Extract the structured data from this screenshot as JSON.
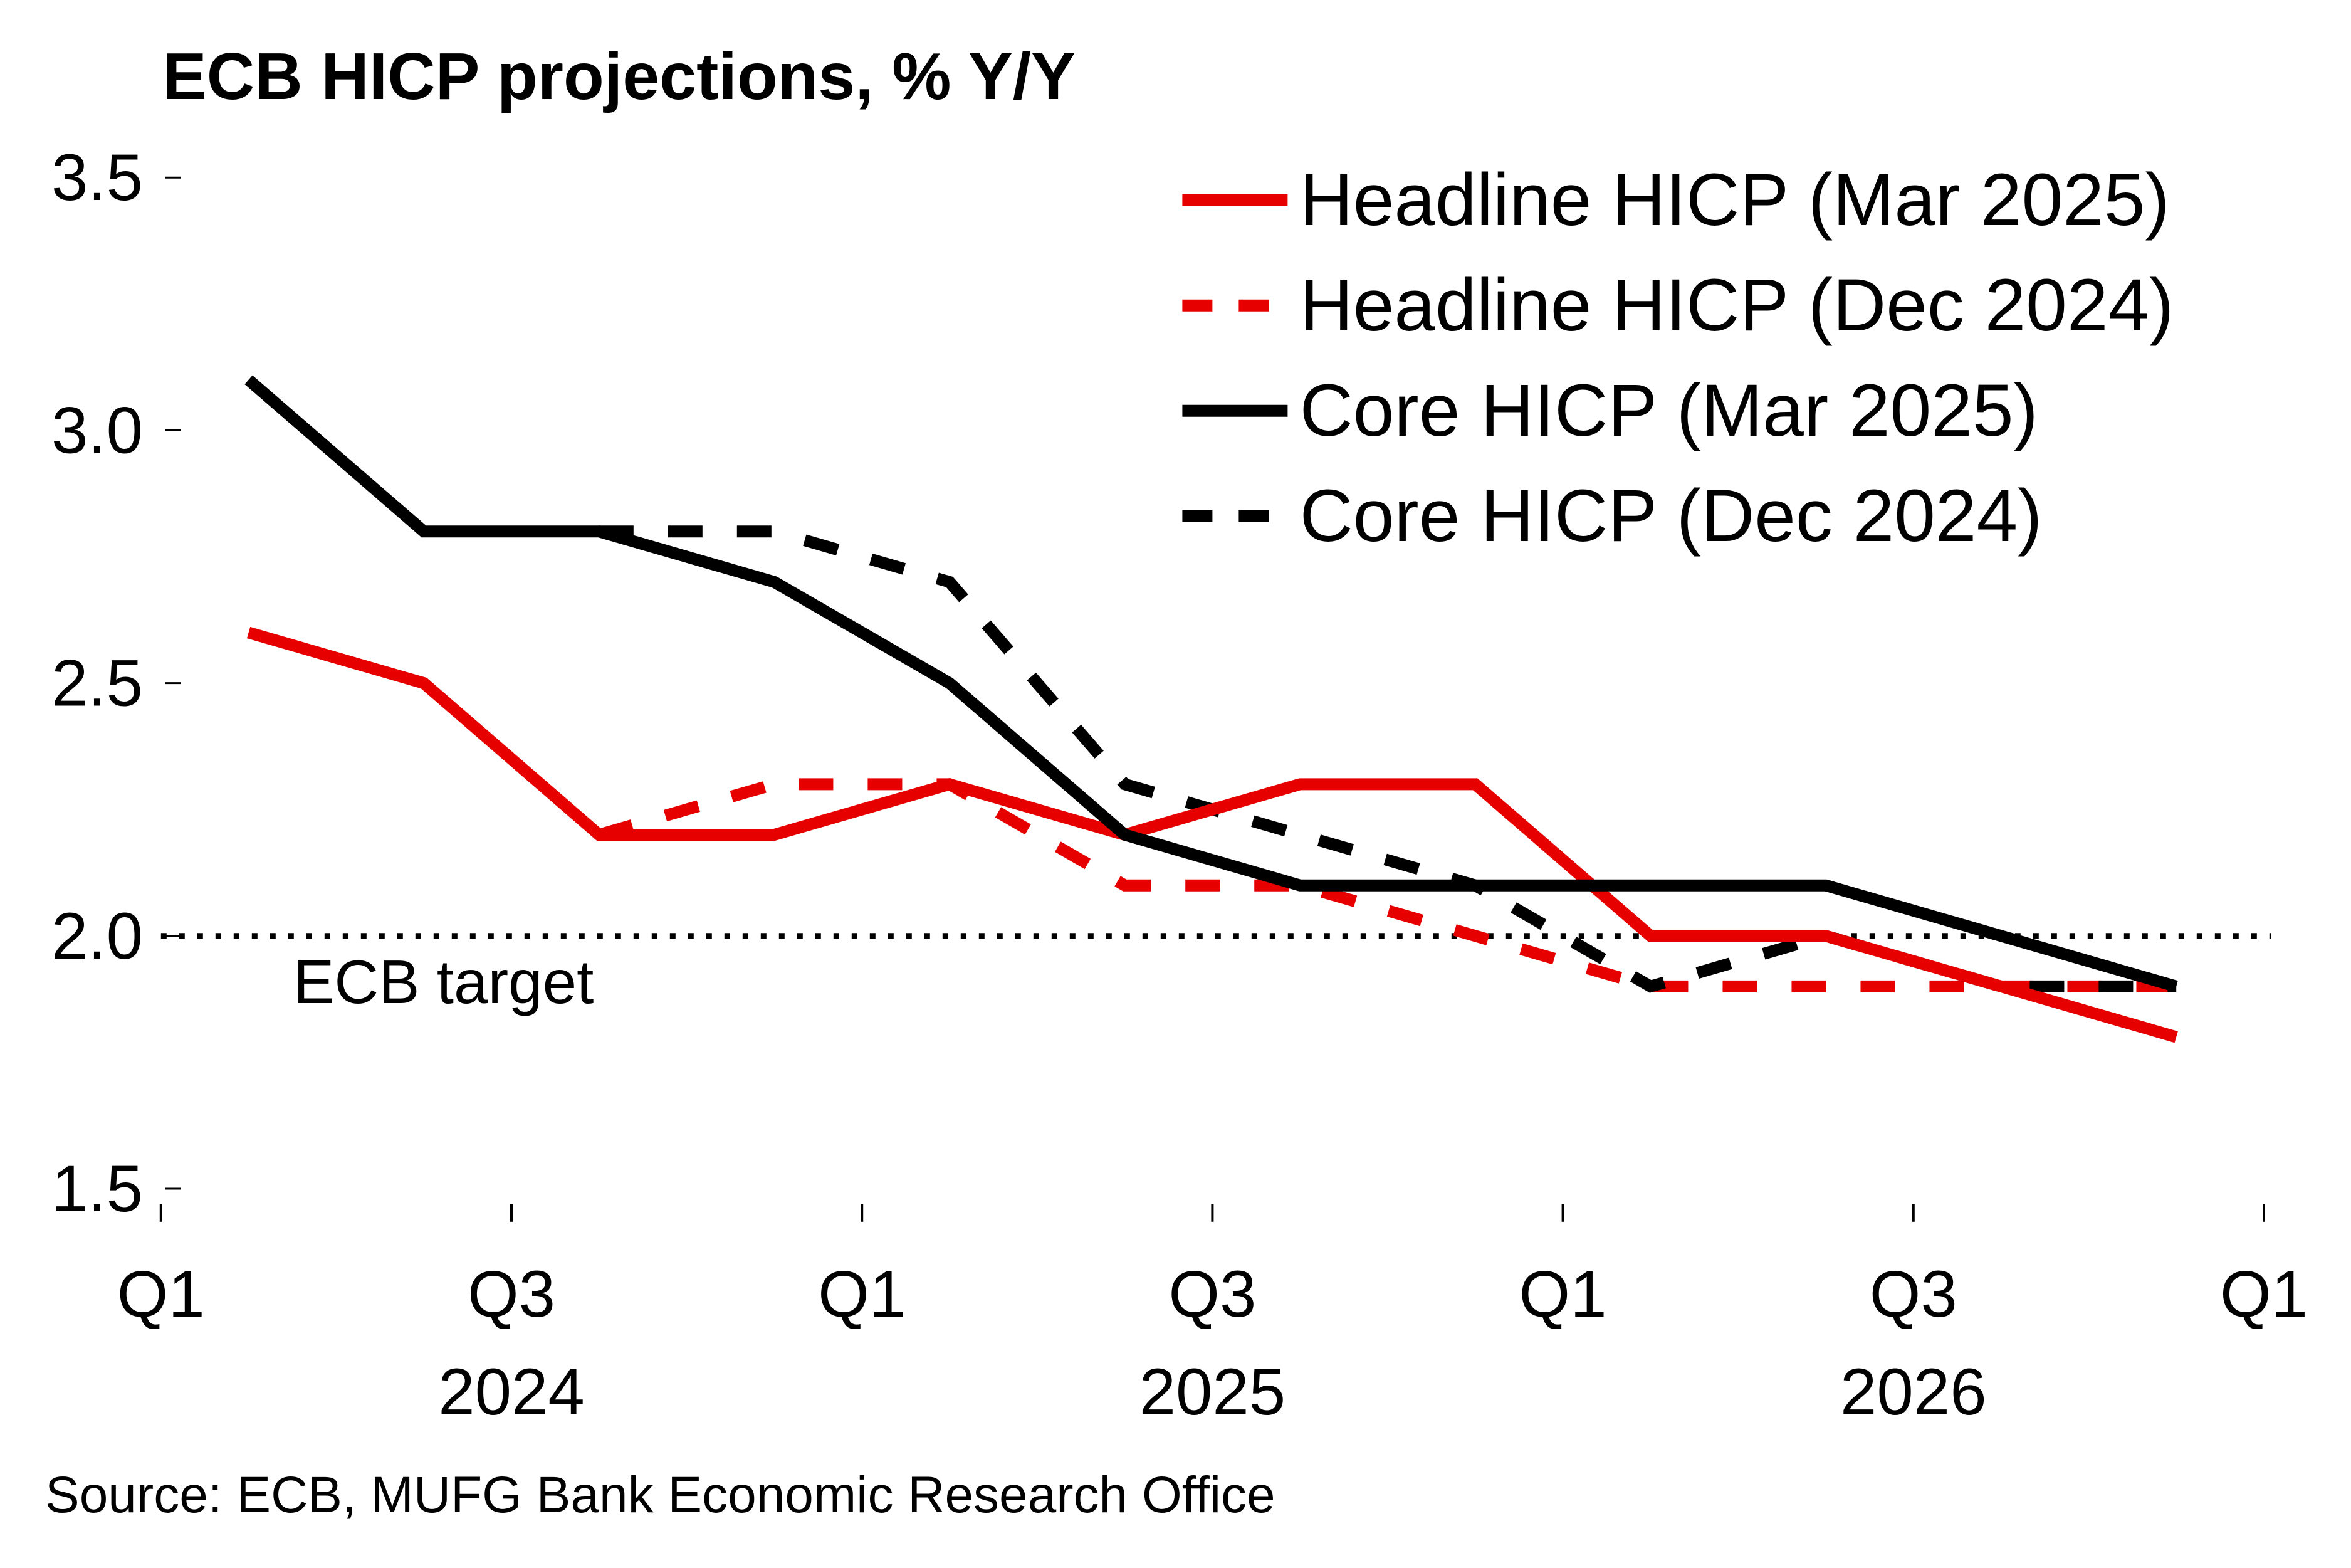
{
  "chart_data": {
    "type": "line",
    "title": "ECB HICP projections, % Y/Y",
    "xlabel": "",
    "ylabel": "",
    "ylim": [
      1.5,
      3.5
    ],
    "yticks": [
      "3.5",
      "3.0",
      "2.5",
      "2.0",
      "1.5"
    ],
    "ytick_values": [
      3.5,
      3.0,
      2.5,
      2.0,
      1.5
    ],
    "x": [
      "2024 Q1",
      "2024 Q2",
      "2024 Q3",
      "2024 Q4",
      "2025 Q1",
      "2025 Q2",
      "2025 Q3",
      "2025 Q4",
      "2026 Q1",
      "2026 Q2",
      "2026 Q3",
      "2026 Q4"
    ],
    "xticks": [
      "Q1",
      "Q3",
      "Q1",
      "Q3",
      "Q1",
      "Q3",
      "Q1"
    ],
    "xyears": [
      "2024",
      "2025",
      "2026"
    ],
    "grid": false,
    "legend_position": "top-right",
    "reference_line": {
      "value": 2.0,
      "label": "ECB target",
      "style": "dotted"
    },
    "series": [
      {
        "name": "Headline HICP (Mar 2025)",
        "color": "#e60000",
        "dash": "solid",
        "values": [
          2.6,
          2.5,
          2.2,
          2.2,
          2.3,
          2.2,
          2.3,
          2.3,
          2.0,
          2.0,
          1.9,
          1.8
        ]
      },
      {
        "name": "Headline HICP (Dec 2024)",
        "color": "#e60000",
        "dash": "dashed",
        "values": [
          null,
          null,
          2.2,
          2.3,
          2.3,
          2.1,
          2.1,
          2.0,
          1.9,
          1.9,
          1.9,
          1.9
        ]
      },
      {
        "name": "Core HICP (Mar 2025)",
        "color": "#000000",
        "dash": "solid",
        "values": [
          3.1,
          2.8,
          2.8,
          2.7,
          2.5,
          2.2,
          2.1,
          2.1,
          2.1,
          2.1,
          2.0,
          1.9
        ]
      },
      {
        "name": "Core HICP (Dec 2024)",
        "color": "#000000",
        "dash": "dashed",
        "values": [
          null,
          null,
          2.8,
          2.8,
          2.7,
          2.3,
          2.2,
          2.1,
          1.9,
          2.0,
          1.9,
          1.9
        ]
      }
    ],
    "source": "Source: ECB, MUFG Bank Economic Research Office"
  }
}
